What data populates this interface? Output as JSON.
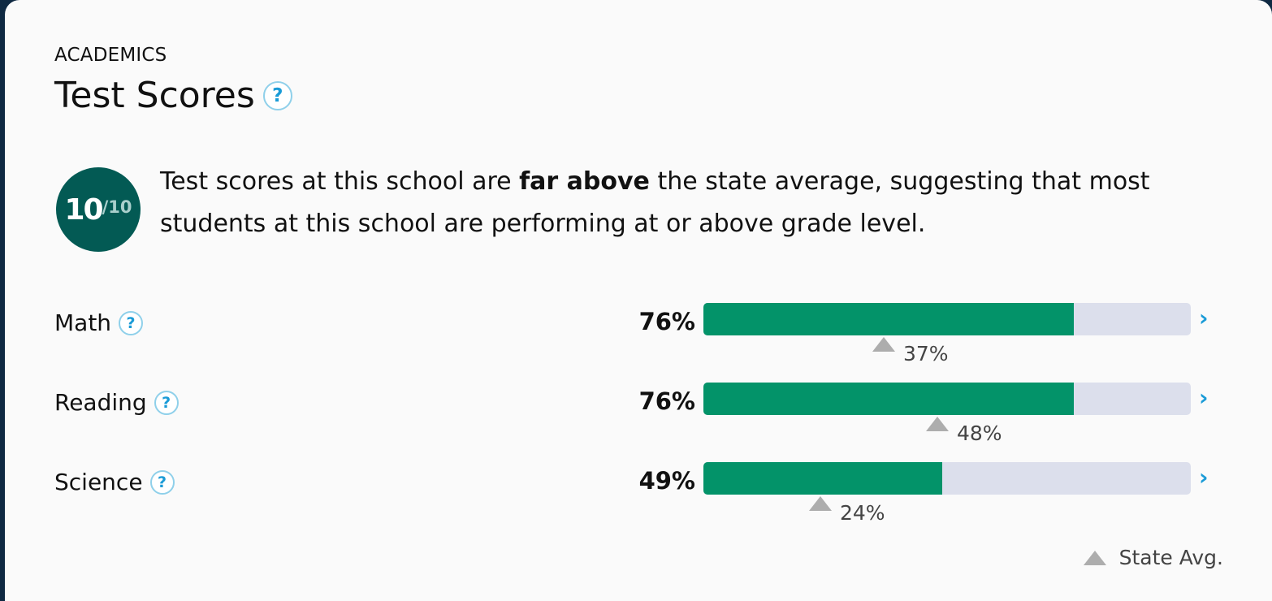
{
  "section": {
    "eyebrow": "ACADEMICS",
    "title": "Test Scores",
    "help": "?"
  },
  "rating": {
    "score": "10",
    "out_of": "/10"
  },
  "summary": {
    "before": "Test scores at this school are ",
    "bold": "far above",
    "after": " the state average, suggesting that most students at this school are performing at or above grade level."
  },
  "subjects": [
    {
      "name": "Math",
      "help": "?",
      "percent_label": "76%",
      "percent": 76,
      "state_avg_label": "37%",
      "state_avg": 37,
      "chevron": "›"
    },
    {
      "name": "Reading",
      "help": "?",
      "percent_label": "76%",
      "percent": 76,
      "state_avg_label": "48%",
      "state_avg": 48,
      "chevron": "›"
    },
    {
      "name": "Science",
      "help": "?",
      "percent_label": "49%",
      "percent": 49,
      "state_avg_label": "24%",
      "state_avg": 24,
      "chevron": "›"
    }
  ],
  "legend": {
    "label": "State Avg."
  },
  "colors": {
    "bar_fill": "#039369",
    "bar_track": "#dcdfec",
    "badge": "#035a54",
    "accent": "#1a9bd7"
  }
}
